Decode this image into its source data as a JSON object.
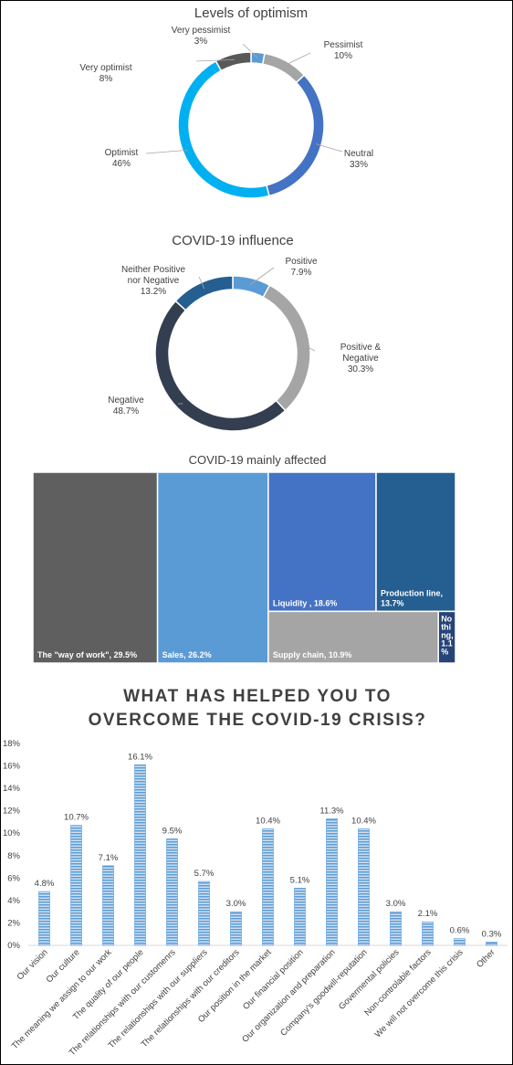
{
  "chart_data": [
    {
      "type": "pie",
      "title": "Levels of optimism",
      "slices": [
        {
          "label": "Very pessimist",
          "value": 3,
          "value_text": "3%",
          "color": "#5a9bd5"
        },
        {
          "label": "Pessimist",
          "value": 10,
          "value_text": "10%",
          "color": "#a5a5a5"
        },
        {
          "label": "Neutral",
          "value": 33,
          "value_text": "33%",
          "color": "#4472c4"
        },
        {
          "label": "Optimist",
          "value": 46,
          "value_text": "46%",
          "color": "#00b0f0"
        },
        {
          "label": "Very optimist",
          "value": 8,
          "value_text": "8%",
          "color": "#595959"
        }
      ]
    },
    {
      "type": "pie",
      "title": "COVID-19 influence",
      "slices": [
        {
          "label": "Positive",
          "value": 7.9,
          "value_text": "7.9%",
          "color": "#5a9bd5"
        },
        {
          "label": "Positive & Negative",
          "value": 30.3,
          "value_text": "30.3%",
          "color": "#a5a5a5"
        },
        {
          "label": "Negative",
          "value": 48.7,
          "value_text": "48.7%",
          "color": "#333f50"
        },
        {
          "label": "Neither Positive nor Negative",
          "value": 13.2,
          "value_text": "13.2%",
          "color": "#255e91"
        }
      ]
    },
    {
      "type": "treemap",
      "title": "COVID-19 mainly affected",
      "items": [
        {
          "label": "The \"way of work\", 29.5%",
          "value": 29.5,
          "color": "#5f5f5f"
        },
        {
          "label": "Sales, 26.2%",
          "value": 26.2,
          "color": "#5b9bd5"
        },
        {
          "label": "Liquidity , 18.6%",
          "value": 18.6,
          "color": "#4472c4"
        },
        {
          "label": "Production line, 13.7%",
          "value": 13.7,
          "color": "#255e91"
        },
        {
          "label": "Supply chain, 10.9%",
          "value": 10.9,
          "color": "#a5a5a5"
        },
        {
          "label": "No thi ng, 1.1 %",
          "value": 1.1,
          "color": "#264478"
        }
      ]
    },
    {
      "type": "bar",
      "title": "WHAT HAS HELPED YOU TO OVERCOME THE COVID-19 CRISIS?",
      "categories": [
        "Our vision",
        "Our culture",
        "The meaning we assign to our work",
        "The quality of our people",
        "The relationships with our customenrs",
        "The relationships with our suppliers",
        "The relationships with our creditors",
        "Our position in the market",
        "Our financial position",
        "Our organization and preparation",
        "Company's goodwill-reputation",
        "Govermental policies",
        "Non-controlable factors",
        "We will not overcome this crisis",
        "Other"
      ],
      "values": [
        4.8,
        10.7,
        7.1,
        16.1,
        9.5,
        5.7,
        3.0,
        10.4,
        5.1,
        11.3,
        10.4,
        3.0,
        2.1,
        0.6,
        0.3
      ],
      "value_labels": [
        "4.8%",
        "10.7%",
        "7.1%",
        "16.1%",
        "9.5%",
        "5.7%",
        "3.0%",
        "10.4%",
        "5.1%",
        "11.3%",
        "10.4%",
        "3.0%",
        "2.1%",
        "0.6%",
        "0.3%"
      ],
      "yticks": [
        "0%",
        "2%",
        "4%",
        "6%",
        "8%",
        "10%",
        "12%",
        "14%",
        "16%",
        "18%"
      ],
      "ylim": [
        0,
        18
      ],
      "bar_color": "#5b9bd5",
      "grid": false,
      "legend": "none"
    }
  ]
}
